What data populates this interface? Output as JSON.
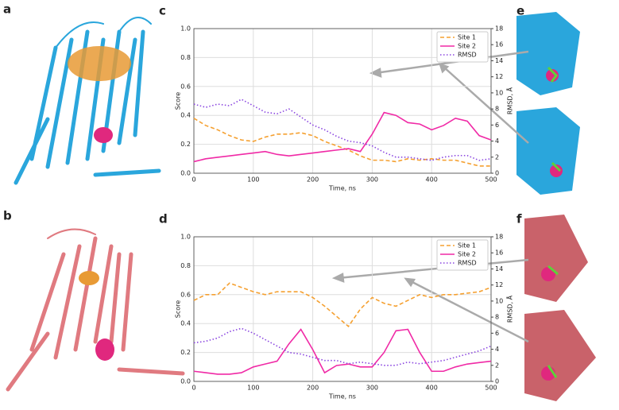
{
  "panel_labels": [
    "a",
    "b",
    "c",
    "d",
    "e",
    "f"
  ],
  "chart_data": [
    {
      "type": "line",
      "xlabel": "Time, ns",
      "ylabel": "Score",
      "y2label": "RMSD, Å",
      "x": [
        0,
        20,
        40,
        60,
        80,
        100,
        120,
        140,
        160,
        180,
        200,
        220,
        240,
        260,
        280,
        300,
        320,
        340,
        360,
        380,
        400,
        420,
        440,
        460,
        480,
        500
      ],
      "xlim": [
        0,
        500
      ],
      "xticks": [
        0,
        100,
        200,
        300,
        400,
        500
      ],
      "ylim": [
        0,
        1
      ],
      "yticks": [
        {
          "value": 0,
          "label": "0.0"
        },
        0.2,
        0.4,
        0.6,
        0.8,
        {
          "value": 1,
          "label": "1.0"
        }
      ],
      "y2lim": [
        0,
        18
      ],
      "y2ticks": [
        0,
        2,
        4,
        6,
        8,
        10,
        12,
        14,
        16,
        18
      ],
      "grid": true,
      "legend": "upper right",
      "series": [
        {
          "name": "Site 1",
          "color": "#f5a030",
          "linestyle": "dashed",
          "values": [
            0.38,
            0.33,
            0.3,
            0.26,
            0.23,
            0.22,
            0.25,
            0.27,
            0.27,
            0.28,
            0.26,
            0.22,
            0.19,
            0.16,
            0.12,
            0.09,
            0.09,
            0.08,
            0.1,
            0.09,
            0.1,
            0.09,
            0.09,
            0.07,
            0.05,
            0.05
          ]
        },
        {
          "name": "Site 2",
          "color": "#f02aa6",
          "linestyle": "solid",
          "values": [
            0.08,
            0.1,
            0.11,
            0.12,
            0.13,
            0.14,
            0.15,
            0.13,
            0.12,
            0.13,
            0.14,
            0.15,
            0.16,
            0.17,
            0.15,
            0.27,
            0.42,
            0.4,
            0.35,
            0.34,
            0.3,
            0.33,
            0.38,
            0.36,
            0.26,
            0.23
          ]
        },
        {
          "name": "RMSD",
          "color": "#8a45e0",
          "linestyle": "dotted",
          "axis": "y2",
          "values": [
            8.6,
            8.2,
            8.6,
            8.4,
            9.2,
            8.4,
            7.6,
            7.4,
            8.0,
            7.0,
            6.0,
            5.4,
            4.6,
            4.0,
            3.8,
            3.4,
            2.6,
            2.0,
            2.0,
            1.8,
            1.6,
            2.0,
            2.2,
            2.2,
            1.6,
            1.8
          ]
        }
      ]
    },
    {
      "type": "line",
      "xlabel": "Time, ns",
      "ylabel": "Score",
      "y2label": "RMSD, Å",
      "x": [
        0,
        20,
        40,
        60,
        80,
        100,
        120,
        140,
        160,
        180,
        200,
        220,
        240,
        260,
        280,
        300,
        320,
        340,
        360,
        380,
        400,
        420,
        440,
        460,
        480,
        500
      ],
      "xlim": [
        0,
        500
      ],
      "xticks": [
        0,
        100,
        200,
        300,
        400,
        500
      ],
      "ylim": [
        0,
        1
      ],
      "yticks": [
        {
          "value": 0,
          "label": "0.0"
        },
        0.2,
        0.4,
        0.6,
        0.8,
        {
          "value": 1,
          "label": "1.0"
        }
      ],
      "y2lim": [
        0,
        18
      ],
      "y2ticks": [
        0,
        2,
        4,
        6,
        8,
        10,
        12,
        14,
        16,
        18
      ],
      "grid": true,
      "legend": "upper right",
      "series": [
        {
          "name": "Site 1",
          "color": "#f5a030",
          "linestyle": "dashed",
          "values": [
            0.56,
            0.6,
            0.6,
            0.68,
            0.65,
            0.62,
            0.6,
            0.62,
            0.62,
            0.62,
            0.58,
            0.52,
            0.45,
            0.38,
            0.5,
            0.58,
            0.54,
            0.52,
            0.56,
            0.6,
            0.58,
            0.6,
            0.6,
            0.61,
            0.62,
            0.65
          ]
        },
        {
          "name": "Site 2",
          "color": "#f02aa6",
          "linestyle": "solid",
          "values": [
            0.07,
            0.06,
            0.05,
            0.05,
            0.06,
            0.1,
            0.12,
            0.14,
            0.26,
            0.36,
            0.22,
            0.06,
            0.11,
            0.12,
            0.1,
            0.1,
            0.2,
            0.35,
            0.36,
            0.2,
            0.07,
            0.07,
            0.1,
            0.12,
            0.13,
            0.14
          ]
        },
        {
          "name": "RMSD",
          "color": "#8a45e0",
          "linestyle": "dotted",
          "axis": "y2",
          "values": [
            4.8,
            5.0,
            5.4,
            6.2,
            6.6,
            6.0,
            5.2,
            4.4,
            3.6,
            3.4,
            3.0,
            2.6,
            2.6,
            2.2,
            2.4,
            2.2,
            2.0,
            2.0,
            2.4,
            2.2,
            2.4,
            2.6,
            3.0,
            3.4,
            3.8,
            4.4
          ]
        }
      ]
    }
  ]
}
